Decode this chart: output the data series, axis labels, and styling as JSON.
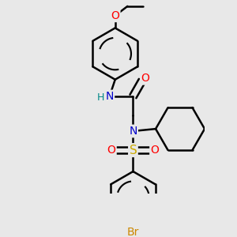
{
  "bg_color": "#e8e8e8",
  "bond_color": "#000000",
  "bond_width": 1.8,
  "atom_colors": {
    "N": "#0000cc",
    "NH_H": "#008888",
    "O": "#ff0000",
    "S": "#ccaa00",
    "Br": "#cc8800",
    "C": "#000000"
  },
  "font_size": 10,
  "fig_size": [
    3.0,
    3.0
  ],
  "dpi": 100
}
